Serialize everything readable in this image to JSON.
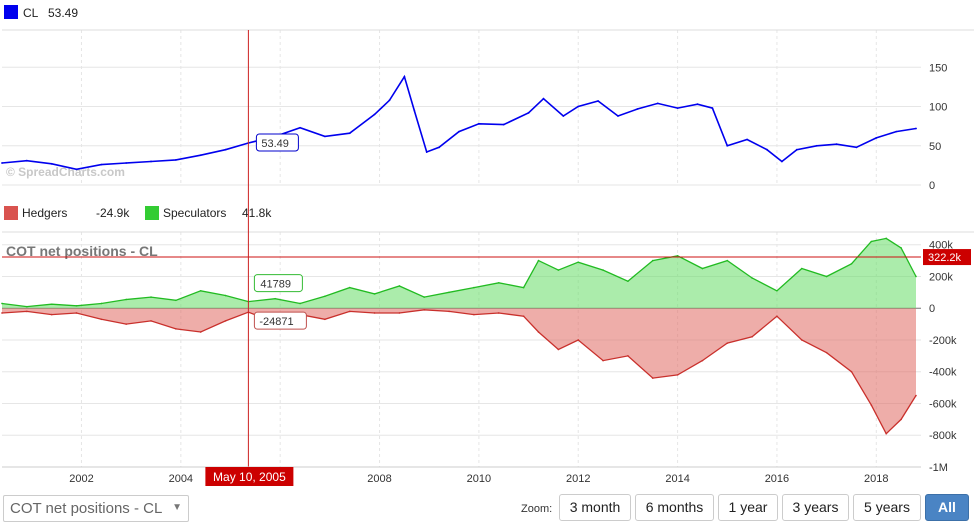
{
  "chart_data": [
    {
      "type": "line",
      "legend": [
        {
          "name": "CL",
          "value": "53.49",
          "color": "#0000ee"
        }
      ],
      "x": [
        2000.4,
        2000.9,
        2001.4,
        2001.9,
        2002.4,
        2002.9,
        2003.4,
        2003.9,
        2004.4,
        2004.9,
        2005.36,
        2005.9,
        2006.4,
        2006.9,
        2007.4,
        2007.9,
        2008.2,
        2008.5,
        2008.7,
        2008.95,
        2009.2,
        2009.6,
        2010.0,
        2010.5,
        2011.0,
        2011.3,
        2011.7,
        2012.0,
        2012.4,
        2012.8,
        2013.2,
        2013.6,
        2014.0,
        2014.4,
        2014.7,
        2015.0,
        2015.4,
        2015.8,
        2016.1,
        2016.4,
        2016.8,
        2017.2,
        2017.6,
        2018.0,
        2018.4,
        2018.8
      ],
      "series": [
        {
          "name": "CL",
          "values": [
            28,
            31,
            27,
            20,
            26,
            28,
            30,
            32,
            38,
            45,
            53.49,
            62,
            73,
            62,
            66,
            90,
            108,
            138,
            95,
            42,
            48,
            68,
            78,
            77,
            92,
            110,
            88,
            100,
            107,
            88,
            97,
            104,
            98,
            103,
            98,
            50,
            58,
            45,
            30,
            45,
            50,
            52,
            48,
            60,
            68,
            72
          ]
        }
      ],
      "yticks": [
        "0",
        "50",
        "100",
        "150"
      ],
      "ylim": [
        0,
        195
      ],
      "crosshair_label": "53.49",
      "watermark": "© SpreadCharts.com",
      "grid": true
    },
    {
      "type": "area",
      "title": "COT net positions - CL",
      "legend": [
        {
          "name": "Hedgers",
          "value": "-24.9k",
          "color": "#d9534f"
        },
        {
          "name": "Speculators",
          "value": "41.8k",
          "color": "#33cc33"
        }
      ],
      "x": [
        2000.4,
        2000.9,
        2001.4,
        2001.9,
        2002.4,
        2002.9,
        2003.4,
        2003.9,
        2004.4,
        2004.9,
        2005.36,
        2005.9,
        2006.4,
        2006.9,
        2007.4,
        2007.9,
        2008.4,
        2008.9,
        2009.4,
        2009.9,
        2010.4,
        2010.9,
        2011.2,
        2011.6,
        2012.0,
        2012.5,
        2013.0,
        2013.5,
        2014.0,
        2014.5,
        2015.0,
        2015.5,
        2016.0,
        2016.5,
        2017.0,
        2017.5,
        2017.9,
        2018.2,
        2018.5,
        2018.8
      ],
      "series": [
        {
          "name": "Speculators",
          "values": [
            30,
            10,
            25,
            15,
            30,
            55,
            70,
            50,
            110,
            80,
            41.8,
            60,
            30,
            75,
            130,
            90,
            140,
            70,
            100,
            130,
            160,
            130,
            300,
            240,
            290,
            240,
            170,
            300,
            330,
            250,
            300,
            190,
            110,
            250,
            200,
            280,
            420,
            440,
            380,
            200
          ]
        },
        {
          "name": "Hedgers",
          "values": [
            -30,
            -20,
            -40,
            -30,
            -70,
            -100,
            -80,
            -130,
            -150,
            -80,
            -24.9,
            -90,
            -40,
            -70,
            -20,
            -30,
            -30,
            -10,
            -20,
            -40,
            -30,
            -50,
            -150,
            -260,
            -200,
            -330,
            -300,
            -440,
            -420,
            -330,
            -220,
            -180,
            -50,
            -200,
            -280,
            -400,
            -610,
            -790,
            -700,
            -550
          ]
        }
      ],
      "yticks": [
        "-1M",
        "-800k",
        "-600k",
        "-400k",
        "-200k",
        "0",
        "200k",
        "400k"
      ],
      "ylim": [
        -1000,
        480
      ],
      "hline_label": "322.2k",
      "crosshair_labels": {
        "speculators": "41789",
        "hedgers": "-24871"
      },
      "grid": true
    }
  ],
  "xaxis": {
    "ticks": [
      "2002",
      "2004",
      "2006",
      "2008",
      "2010",
      "2012",
      "2014",
      "2016",
      "2018"
    ],
    "crosshair_date": "May 10, 2005"
  },
  "controls": {
    "series_select": "COT net positions - CL",
    "zoom_label": "Zoom:",
    "zoom_buttons": [
      "3 month",
      "6 months",
      "1 year",
      "3 years",
      "5 years",
      "All"
    ],
    "active_zoom": "All"
  }
}
